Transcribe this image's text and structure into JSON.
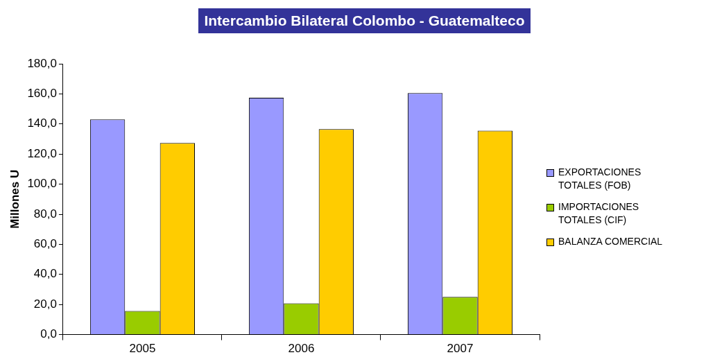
{
  "chart_data": {
    "type": "bar",
    "title": "Intercambio Bilateral Colombo - Guatemalteco",
    "ylabel": "Millones U",
    "categories": [
      "2005",
      "2006",
      "2007"
    ],
    "series": [
      {
        "name": "EXPORTACIONES TOTALES (FOB)",
        "color": "#9999ff",
        "values": [
          143.0,
          157.4,
          160.5
        ]
      },
      {
        "name": "IMPORTACIONES TOTALES (CIF)",
        "color": "#99cc00",
        "values": [
          15.7,
          20.8,
          25.0
        ]
      },
      {
        "name": "BALANZA COMERCIAL",
        "color": "#ffcc00",
        "values": [
          127.3,
          136.6,
          135.5
        ]
      }
    ],
    "ylim": [
      0,
      180
    ],
    "yticks": [
      {
        "value": 0,
        "label": "0,0"
      },
      {
        "value": 20,
        "label": "20,0"
      },
      {
        "value": 40,
        "label": "40,0"
      },
      {
        "value": 60,
        "label": "60,0"
      },
      {
        "value": 80,
        "label": "80,0"
      },
      {
        "value": 100,
        "label": "100,0"
      },
      {
        "value": 120,
        "label": "120,0"
      },
      {
        "value": 140,
        "label": "140,0"
      },
      {
        "value": 160,
        "label": "160,0"
      },
      {
        "value": 180,
        "label": "180,0"
      }
    ],
    "grid": false,
    "legend": "right"
  }
}
